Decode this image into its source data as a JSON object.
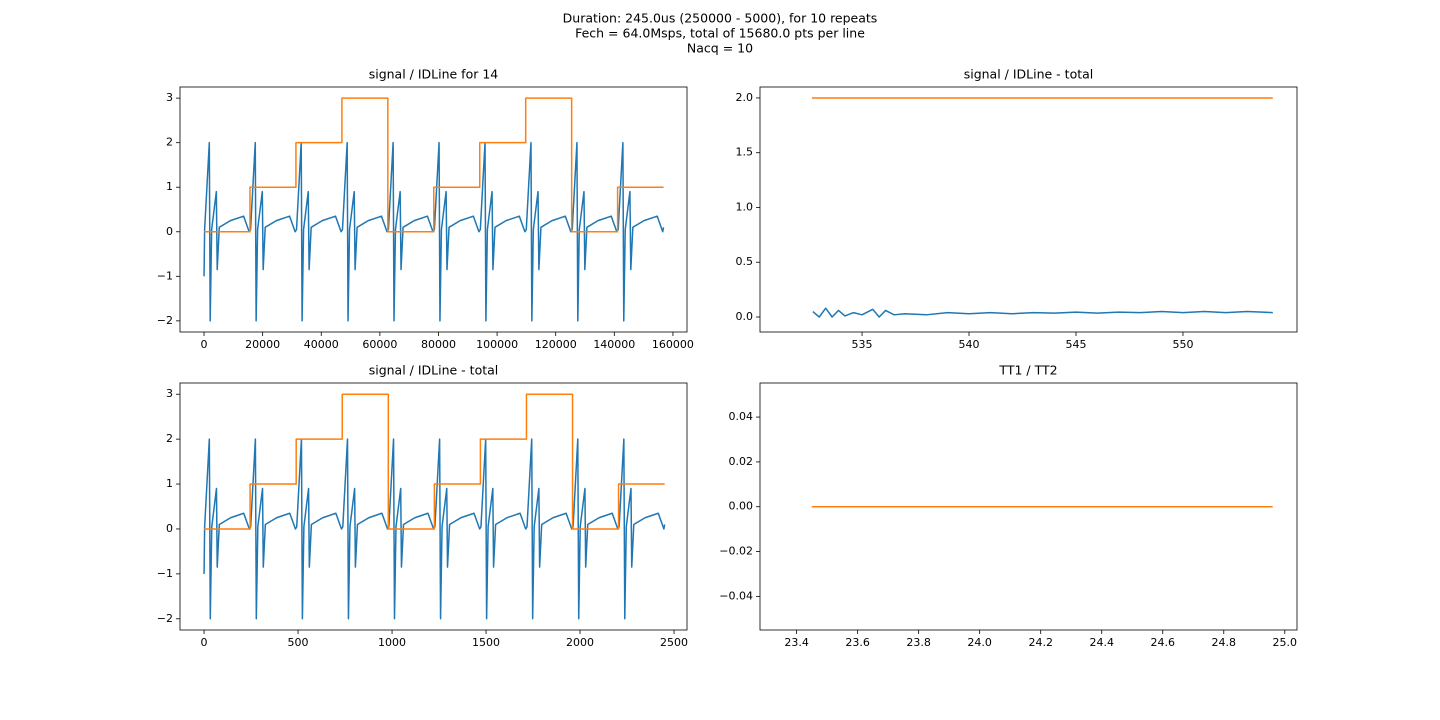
{
  "suptitle": [
    "Duration: 245.0us (250000 - 5000), for 10 repeats",
    "Fech = 64.0Msps, total of 15680.0 pts per line",
    "Nacq = 10"
  ],
  "chart_data": [
    {
      "type": "line",
      "title": "signal / IDLine for 14",
      "xlim": [
        -8200,
        164800
      ],
      "xticks": [
        0,
        20000,
        40000,
        60000,
        80000,
        100000,
        120000,
        140000,
        160000
      ],
      "ylim": [
        -2.25,
        3.25
      ],
      "yticks": [
        {
          "value": -2,
          "label": "−2"
        },
        {
          "value": -1,
          "label": "−1"
        },
        0,
        1,
        2,
        3
      ],
      "series": [
        {
          "color": "#1f77b4",
          "x": [
            0,
            200,
            1800,
            2100,
            2600,
            4200,
            4500,
            5200,
            9000,
            13500,
            15400,
            15880,
            17480,
            17780,
            18280,
            19880,
            20180,
            20880,
            24680,
            29180,
            31080,
            31560,
            33160,
            33460,
            33960,
            35560,
            35860,
            36560,
            40360,
            44860,
            46760,
            47240,
            48840,
            49140,
            49640,
            51240,
            51540,
            52240,
            56040,
            60540,
            62440,
            62920,
            64520,
            64820,
            65320,
            66920,
            67220,
            67920,
            71720,
            76220,
            78120,
            78600,
            80200,
            80500,
            81000,
            82600,
            82900,
            83600,
            87400,
            91900,
            93800,
            94280,
            95880,
            96180,
            96680,
            98280,
            98580,
            99280,
            103080,
            107580,
            109480,
            109960,
            111560,
            111860,
            112360,
            113960,
            114260,
            114960,
            118760,
            123260,
            125160,
            125640,
            127240,
            127540,
            128040,
            129640,
            129940,
            130640,
            134440,
            138940,
            140840,
            141320,
            142920,
            143220,
            143720,
            145320,
            145620,
            146320,
            150120,
            154620,
            156520,
            156800
          ],
          "values": [
            -1.0,
            0.05,
            2,
            -2,
            0.05,
            0.9,
            -0.85,
            0.1,
            0.25,
            0.35,
            0,
            0.05,
            2,
            -2,
            0.05,
            0.9,
            -0.85,
            0.1,
            0.25,
            0.35,
            0,
            0.05,
            2,
            -2,
            0.05,
            0.9,
            -0.85,
            0.1,
            0.25,
            0.35,
            0,
            0.05,
            2,
            -2,
            0.05,
            0.9,
            -0.85,
            0.1,
            0.25,
            0.35,
            0,
            0.05,
            2,
            -2,
            0.05,
            0.9,
            -0.85,
            0.1,
            0.25,
            0.35,
            0,
            0.05,
            2,
            -2,
            0.05,
            0.9,
            -0.85,
            0.1,
            0.25,
            0.35,
            0,
            0.05,
            2,
            -2,
            0.05,
            0.9,
            -0.85,
            0.1,
            0.25,
            0.35,
            0,
            0.05,
            2,
            -2,
            0.05,
            0.9,
            -0.85,
            0.1,
            0.25,
            0.35,
            0,
            0.05,
            2,
            -2,
            0.05,
            0.9,
            -0.85,
            0.1,
            0.25,
            0.35,
            0,
            0.05,
            2,
            -2,
            0.05,
            0.9,
            -0.85,
            0.1,
            0.25,
            0.35,
            0,
            0.1
          ]
        },
        {
          "color": "#ff7f0e",
          "x": [
            0,
            15680,
            15680,
            31360,
            31360,
            47040,
            47040,
            62720,
            62720,
            78400,
            78400,
            94080,
            94080,
            109760,
            109760,
            125440,
            125440,
            141120,
            141120,
            156800
          ],
          "values": [
            0,
            0,
            1,
            1,
            2,
            2,
            3,
            3,
            0,
            0,
            1,
            1,
            2,
            2,
            3,
            3,
            0,
            0,
            1,
            1
          ]
        }
      ]
    },
    {
      "type": "line",
      "title": "signal / IDLine - total",
      "xlim": [
        530.23,
        555.33
      ],
      "xticks": [
        535,
        540,
        545,
        550
      ],
      "ylim": [
        -0.137,
        2.1
      ],
      "yticks": [
        {
          "value": 0,
          "label": "0.0"
        },
        {
          "value": 0.5,
          "label": "0.5"
        },
        {
          "value": 1,
          "label": "1.0"
        },
        {
          "value": 1.5,
          "label": "1.5"
        },
        {
          "value": 2,
          "label": "2.0"
        }
      ],
      "series": [
        {
          "color": "#1f77b4",
          "x": [
            532.7,
            533.0,
            533.3,
            533.6,
            533.9,
            534.2,
            534.6,
            535.0,
            535.5,
            535.8,
            536.1,
            536.5,
            537,
            538,
            539,
            540,
            541,
            542,
            543,
            544,
            545,
            546,
            547,
            548,
            549,
            550,
            551,
            552,
            553,
            554.2
          ],
          "values": [
            0.05,
            0.0,
            0.08,
            0.0,
            0.06,
            0.01,
            0.04,
            0.02,
            0.07,
            0.0,
            0.06,
            0.02,
            0.03,
            0.02,
            0.04,
            0.03,
            0.04,
            0.03,
            0.04,
            0.035,
            0.045,
            0.035,
            0.045,
            0.04,
            0.05,
            0.04,
            0.05,
            0.04,
            0.05,
            0.04
          ]
        },
        {
          "color": "#ff7f0e",
          "x": [
            532.66,
            554.2
          ],
          "values": [
            2,
            2
          ]
        }
      ]
    },
    {
      "type": "line",
      "title": "signal / IDLine - total",
      "xlim": [
        -128,
        2569
      ],
      "xticks": [
        0,
        500,
        1000,
        1500,
        2000,
        2500
      ],
      "ylim": [
        -2.25,
        3.25
      ],
      "yticks": [
        {
          "value": -2,
          "label": "−2"
        },
        {
          "value": -1,
          "label": "−1"
        },
        0,
        1,
        2,
        3
      ],
      "series": [
        {
          "color": "#1f77b4",
          "x": [
            0,
            3,
            28,
            33,
            41,
            66,
            70,
            81,
            141,
            211,
            241,
            248,
            273,
            278,
            286,
            311,
            315,
            326,
            386,
            456,
            486,
            493,
            518,
            523,
            531,
            556,
            560,
            571,
            631,
            701,
            731,
            738,
            763,
            768,
            776,
            801,
            805,
            816,
            876,
            946,
            976,
            983,
            1008,
            1013,
            1021,
            1046,
            1050,
            1061,
            1121,
            1191,
            1221,
            1228,
            1253,
            1258,
            1266,
            1291,
            1295,
            1306,
            1366,
            1436,
            1466,
            1473,
            1498,
            1503,
            1511,
            1536,
            1540,
            1551,
            1611,
            1681,
            1711,
            1718,
            1743,
            1748,
            1756,
            1781,
            1785,
            1796,
            1856,
            1926,
            1956,
            1963,
            1988,
            1993,
            2001,
            2026,
            2030,
            2041,
            2101,
            2171,
            2201,
            2208,
            2233,
            2238,
            2246,
            2271,
            2275,
            2286,
            2346,
            2416,
            2446,
            2450
          ],
          "values": [
            -1.0,
            0.05,
            2,
            -2,
            0.05,
            0.9,
            -0.85,
            0.1,
            0.25,
            0.35,
            0,
            0.05,
            2,
            -2,
            0.05,
            0.9,
            -0.85,
            0.1,
            0.25,
            0.35,
            0,
            0.05,
            2,
            -2,
            0.05,
            0.9,
            -0.85,
            0.1,
            0.25,
            0.35,
            0,
            0.05,
            2,
            -2,
            0.05,
            0.9,
            -0.85,
            0.1,
            0.25,
            0.35,
            0,
            0.05,
            2,
            -2,
            0.05,
            0.9,
            -0.85,
            0.1,
            0.25,
            0.35,
            0,
            0.05,
            2,
            -2,
            0.05,
            0.9,
            -0.85,
            0.1,
            0.25,
            0.35,
            0,
            0.05,
            2,
            -2,
            0.05,
            0.9,
            -0.85,
            0.1,
            0.25,
            0.35,
            0,
            0.05,
            2,
            -2,
            0.05,
            0.9,
            -0.85,
            0.1,
            0.25,
            0.35,
            0,
            0.05,
            2,
            -2,
            0.05,
            0.9,
            -0.85,
            0.1,
            0.25,
            0.35,
            0,
            0.05,
            2,
            -2,
            0.05,
            0.9,
            -0.85,
            0.1,
            0.25,
            0.35,
            0,
            0.1
          ]
        },
        {
          "color": "#ff7f0e",
          "x": [
            0,
            245,
            245,
            490,
            490,
            735,
            735,
            980,
            980,
            1225,
            1225,
            1470,
            1470,
            1715,
            1715,
            1960,
            1960,
            2205,
            2205,
            2450
          ],
          "values": [
            0,
            0,
            1,
            1,
            2,
            2,
            3,
            3,
            0,
            0,
            1,
            1,
            2,
            2,
            3,
            3,
            0,
            0,
            1,
            1
          ]
        }
      ]
    },
    {
      "type": "line",
      "title": "TT1 / TT2",
      "xlim": [
        23.28,
        25.04
      ],
      "xticks": [
        23.4,
        23.6,
        23.8,
        {
          "value": 24,
          "label": "24.0"
        },
        24.2,
        24.4,
        24.6,
        24.8,
        {
          "value": 25,
          "label": "25.0"
        }
      ],
      "ylim": [
        -0.055,
        0.0552
      ],
      "yticks": [
        {
          "value": -0.04,
          "label": "−0.04"
        },
        {
          "value": -0.02,
          "label": "−0.02"
        },
        {
          "value": 0,
          "label": "0.00"
        },
        {
          "value": 0.02,
          "label": "0.02"
        },
        {
          "value": 0.04,
          "label": "0.04"
        }
      ],
      "series": [
        {
          "color": "#1f77b4",
          "x": [
            23.45,
            24.96
          ],
          "values": [
            0,
            0
          ]
        },
        {
          "color": "#ff7f0e",
          "x": [
            23.45,
            24.96
          ],
          "values": [
            0,
            0
          ]
        }
      ]
    }
  ]
}
